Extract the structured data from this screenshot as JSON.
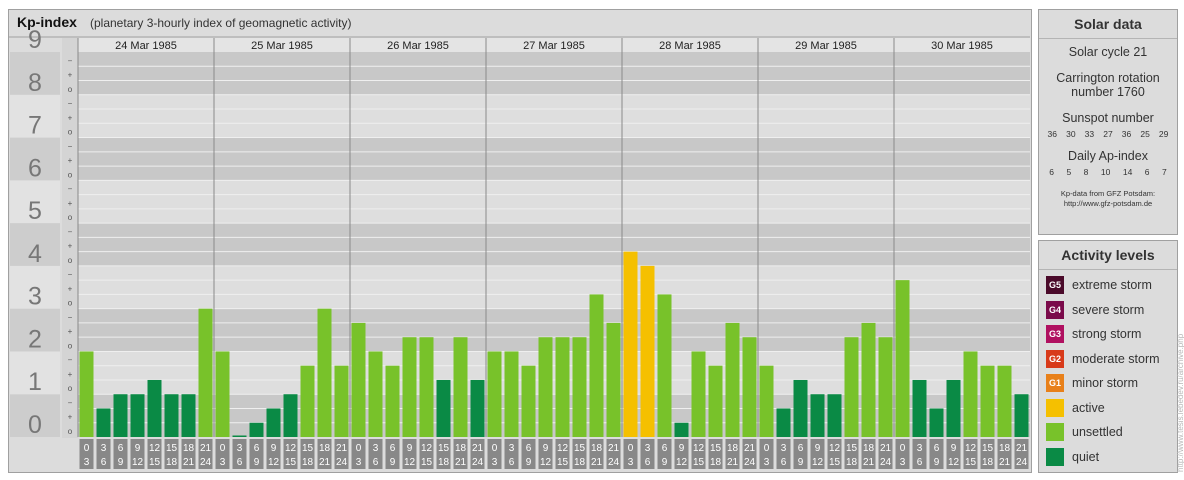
{
  "header": {
    "title": "Kp-index",
    "subtitle": "(planetary 3-hourly index of geomagnetic activity)"
  },
  "chart_data": {
    "type": "bar",
    "title": "Kp-index",
    "subtitle": "(planetary 3-hourly index of geomagnetic activity)",
    "ylim": [
      0,
      9
    ],
    "y_tick_labels": [
      "0",
      "1",
      "2",
      "3",
      "4",
      "5",
      "6",
      "7",
      "8",
      "9"
    ],
    "y_minor_labels": [
      "+",
      "−",
      "o"
    ],
    "days": [
      "24 Mar 1985",
      "25 Mar 1985",
      "26 Mar 1985",
      "27 Mar 1985",
      "28 Mar 1985",
      "29 Mar 1985",
      "30 Mar 1985"
    ],
    "interval_start_labels": [
      "0",
      "3",
      "6",
      "9",
      "12",
      "15",
      "18",
      "21"
    ],
    "interval_end_labels": [
      "3",
      "6",
      "9",
      "12",
      "15",
      "18",
      "21",
      "24"
    ],
    "values": [
      2,
      0.667,
      1,
      1,
      1.333,
      1,
      1,
      3,
      2,
      0,
      0.333,
      0.667,
      1,
      1.667,
      3,
      1.667,
      2.667,
      2,
      1.667,
      2.333,
      2.333,
      1.333,
      2.333,
      1.333,
      2,
      2,
      1.667,
      2.333,
      2.333,
      2.333,
      3.333,
      2.667,
      4.333,
      4,
      3.333,
      0.333,
      2,
      1.667,
      2.667,
      2.333,
      1.667,
      0.667,
      1.333,
      1,
      1,
      2.333,
      2.667,
      2.333,
      3.667,
      1.333,
      0.667,
      1.333,
      2,
      1.667,
      1.667,
      1
    ],
    "level_colors": {
      "quiet": "#0a8a45",
      "unsettled": "#78c22a",
      "active": "#f5c000"
    },
    "grid": true
  },
  "solar": {
    "title": "Solar data",
    "cycle": "Solar cycle 21",
    "carrington_1": "Carrington rotation",
    "carrington_2": "number 1760",
    "sunspot_title": "Sunspot number",
    "sunspot_values": [
      "36",
      "30",
      "33",
      "27",
      "36",
      "25",
      "29"
    ],
    "ap_title": "Daily Ap-index",
    "ap_values": [
      "6",
      "5",
      "8",
      "10",
      "14",
      "6",
      "7"
    ],
    "credit_1": "Kp-data from GFZ Potsdam:",
    "credit_2": "http://www.gfz-potsdam.de"
  },
  "activity": {
    "title": "Activity levels",
    "levels": [
      {
        "code": "G5",
        "label": "extreme storm",
        "color": "#4a0a2a"
      },
      {
        "code": "G4",
        "label": "severe storm",
        "color": "#7a0a4a"
      },
      {
        "code": "G3",
        "label": "strong storm",
        "color": "#b01060"
      },
      {
        "code": "G2",
        "label": "moderate storm",
        "color": "#d83a1a"
      },
      {
        "code": "G1",
        "label": "minor storm",
        "color": "#e8801a"
      },
      {
        "code": "",
        "label": "active",
        "color": "#f5c000"
      },
      {
        "code": "",
        "label": "unsettled",
        "color": "#78c22a"
      },
      {
        "code": "",
        "label": "quiet",
        "color": "#0a8a45"
      }
    ]
  },
  "watermark": "http://www.tesis.lebedev.ru/archive.php"
}
